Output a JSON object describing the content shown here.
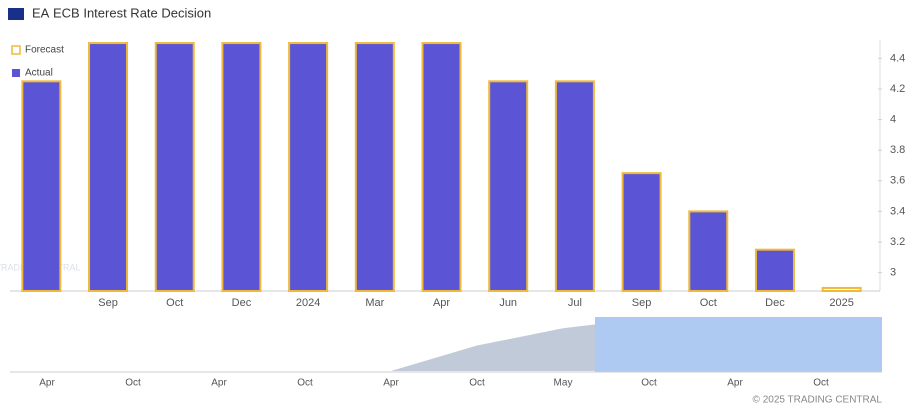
{
  "chart_data": [
    {
      "type": "bar",
      "country": "EA",
      "title": "ECB Interest Rate Decision",
      "watermark": "TRADING CENTRAL",
      "categories": [
        null,
        "Sep",
        "Oct",
        "Dec",
        "2024",
        "Mar",
        "Apr",
        "Jun",
        "Jul",
        "Sep",
        "Oct",
        "Dec",
        "2025"
      ],
      "series": [
        {
          "name": "Forecast",
          "color": "#f0b93a",
          "values": [
            4.25,
            4.5,
            4.5,
            4.5,
            4.5,
            4.5,
            4.5,
            4.25,
            4.25,
            3.65,
            3.4,
            3.15,
            2.9
          ]
        },
        {
          "name": "Actual",
          "color": "#5b55d6",
          "values": [
            4.25,
            4.5,
            4.5,
            4.5,
            4.5,
            4.5,
            4.5,
            4.25,
            4.25,
            3.65,
            3.4,
            3.15,
            null
          ]
        }
      ],
      "ylim": [
        2.88,
        4.52
      ],
      "yticks": [
        3,
        3.2,
        3.4,
        3.6,
        3.8,
        4,
        4.2,
        4.4
      ],
      "legend": "top-left"
    },
    {
      "type": "area",
      "categories": [
        "Apr",
        "Oct",
        "Apr",
        "Oct",
        "Apr",
        "Oct",
        "May",
        "Oct",
        "Apr",
        "Oct"
      ],
      "values": [
        0,
        0,
        0,
        0,
        0,
        2.16,
        3.63,
        4.5,
        4.5,
        3.72
      ],
      "color": "#c0cad8",
      "ylim": [
        0,
        4.5
      ],
      "credit": "© 2025 TRADING CENTRAL"
    }
  ]
}
